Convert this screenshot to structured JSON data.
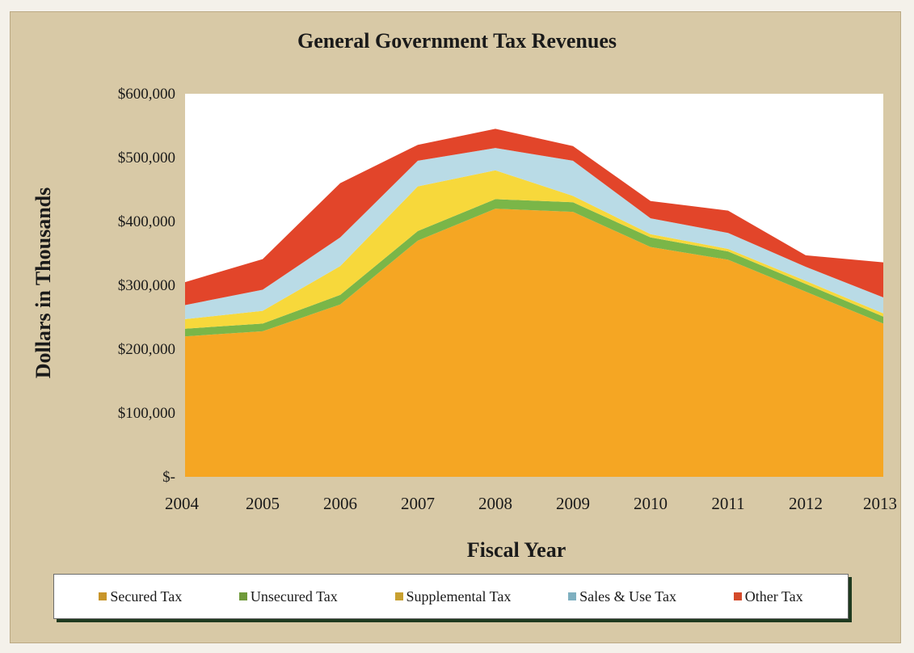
{
  "chart_data": {
    "type": "area",
    "stacked": true,
    "title": "General Government Tax Revenues",
    "xlabel": "Fiscal Year",
    "ylabel": "Dollars in Thousands",
    "x": [
      "2004",
      "2005",
      "2006",
      "2007",
      "2008",
      "2009",
      "2010",
      "2011",
      "2012",
      "2013"
    ],
    "ylim": [
      0,
      600000
    ],
    "yticks": [
      0,
      100000,
      200000,
      300000,
      400000,
      500000,
      600000
    ],
    "ytick_labels": [
      "$-",
      "$100,000",
      "$200,000",
      "$300,000",
      "$400,000",
      "$500,000",
      "$600,000"
    ],
    "grid": false,
    "legend_position": "bottom",
    "series": [
      {
        "name": "Secured Tax",
        "color": "#f5a623",
        "values": [
          220000,
          228000,
          270000,
          370000,
          420000,
          415000,
          360000,
          340000,
          290000,
          240000
        ]
      },
      {
        "name": "Unsecured Tax",
        "color": "#7ab648",
        "values": [
          12000,
          12000,
          15000,
          15000,
          15000,
          15000,
          15000,
          13000,
          12000,
          11000
        ]
      },
      {
        "name": "Supplemental Tax",
        "color": "#f7d83b",
        "values": [
          15000,
          20000,
          45000,
          70000,
          45000,
          10000,
          5000,
          4000,
          5000,
          5000
        ]
      },
      {
        "name": "Sales & Use Tax",
        "color": "#b9dbe6",
        "values": [
          22000,
          33000,
          45000,
          40000,
          35000,
          55000,
          25000,
          25000,
          22000,
          25000
        ]
      },
      {
        "name": "Other Tax",
        "color": "#e2452a",
        "values": [
          36000,
          48000,
          85000,
          25000,
          30000,
          23000,
          27000,
          35000,
          18000,
          55000
        ]
      }
    ]
  },
  "legend": {
    "items": [
      {
        "label": "Secured Tax",
        "color": "#c8952a"
      },
      {
        "label": "Unsecured Tax",
        "color": "#6f9a3a"
      },
      {
        "label": "Supplemental Tax",
        "color": "#c8a030"
      },
      {
        "label": "Sales & Use Tax",
        "color": "#7fb0c0"
      },
      {
        "label": "Other Tax",
        "color": "#d44a2a"
      }
    ]
  }
}
